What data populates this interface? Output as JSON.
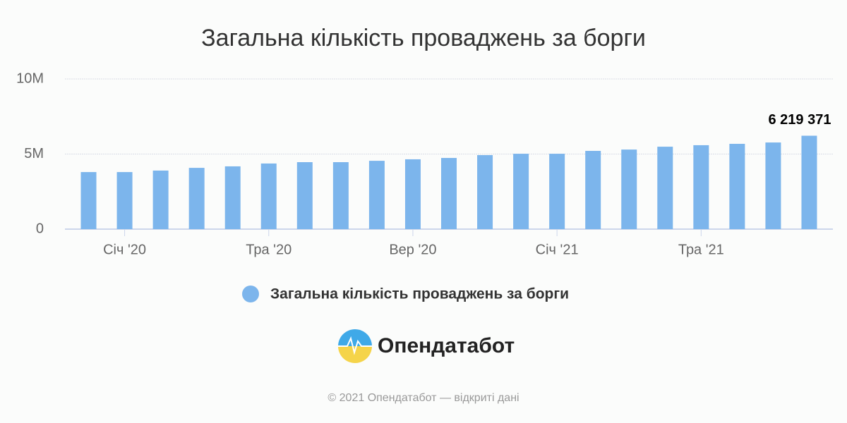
{
  "chart_data": {
    "type": "bar",
    "title": "Загальна кількість проваджень за борги",
    "categories": [
      null,
      "Січ '20",
      null,
      null,
      null,
      "Тра '20",
      null,
      null,
      null,
      "Вер '20",
      null,
      null,
      null,
      "Січ '21",
      null,
      null,
      null,
      "Тра '21",
      null,
      null,
      null
    ],
    "series": [
      {
        "name": "Загальна кількість проваджень за борги",
        "color": "#7cb5ec",
        "values": [
          3800000,
          3800000,
          3900000,
          4080000,
          4180000,
          4370000,
          4460000,
          4460000,
          4550000,
          4650000,
          4740000,
          4930000,
          5020000,
          5020000,
          5210000,
          5300000,
          5490000,
          5590000,
          5680000,
          5770000,
          6219371
        ],
        "value_labels": [
          null,
          null,
          null,
          null,
          null,
          null,
          null,
          null,
          null,
          null,
          null,
          null,
          null,
          null,
          null,
          null,
          null,
          null,
          null,
          null,
          "6 219 371"
        ]
      }
    ],
    "ylim": [
      0,
      10000000
    ],
    "yticks": [
      0,
      {
        "value": 5000000,
        "label": "5M"
      },
      {
        "value": 10000000,
        "label": "10M"
      }
    ],
    "grid": true,
    "legend": "bottom"
  },
  "brand": "Опендатабот",
  "footer": "© 2021 Опендатабот — відкриті дані"
}
